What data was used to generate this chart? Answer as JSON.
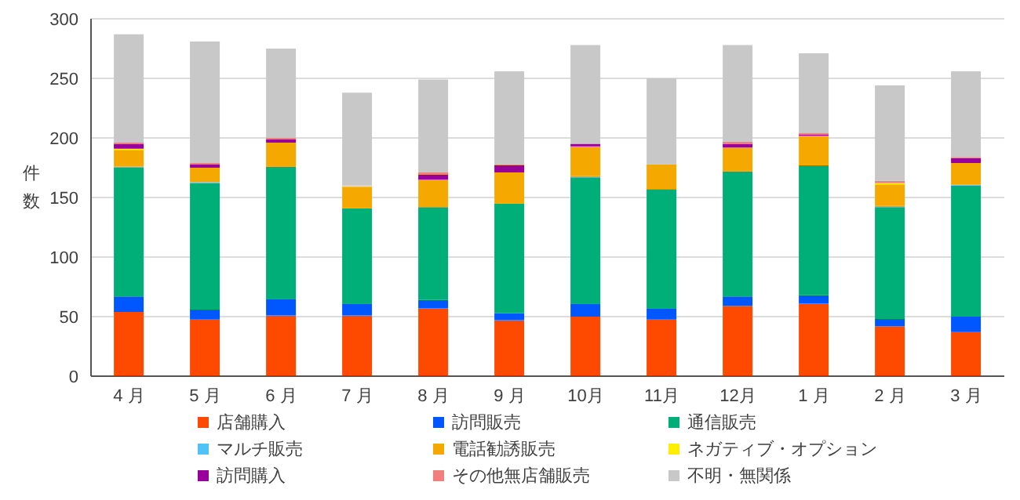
{
  "chart_data": {
    "type": "bar",
    "stacked": true,
    "ylabel": "件数",
    "categories": [
      "4 月",
      "5 月",
      "6 月",
      "7 月",
      "8 月",
      "9 月",
      "10月",
      "11月",
      "12月",
      "1 月",
      "2 月",
      "3 月"
    ],
    "series": [
      {
        "name": "店舗購入",
        "color": "#fe4a00",
        "values": [
          54,
          48,
          51,
          51,
          57,
          47,
          50,
          48,
          59,
          61,
          42,
          37
        ]
      },
      {
        "name": "訪問販売",
        "color": "#0057ff",
        "values": [
          13,
          8,
          14,
          10,
          7,
          6,
          11,
          9,
          8,
          7,
          6,
          13
        ]
      },
      {
        "name": "通信販売",
        "color": "#00ae78",
        "values": [
          108,
          106,
          111,
          80,
          78,
          92,
          106,
          100,
          105,
          109,
          94,
          110
        ]
      },
      {
        "name": "マルチ販売",
        "color": "#4fc3f7",
        "values": [
          1,
          1,
          0,
          0,
          0,
          0,
          1,
          0,
          0,
          0,
          1,
          1
        ]
      },
      {
        "name": "電話勧誘販売",
        "color": "#f5a800",
        "values": [
          14,
          12,
          20,
          18,
          23,
          26,
          25,
          21,
          20,
          25,
          18,
          18
        ]
      },
      {
        "name": "ネガティブ・オプション",
        "color": "#ffee00",
        "values": [
          1,
          0,
          0,
          1,
          0,
          0,
          0,
          0,
          0,
          0,
          1,
          0
        ]
      },
      {
        "name": "訪問購入",
        "color": "#990099",
        "values": [
          4,
          3,
          3,
          0,
          4,
          6,
          2,
          0,
          3,
          1,
          0,
          4
        ]
      },
      {
        "name": "その他無店舗販売",
        "color": "#f08080",
        "values": [
          1,
          1,
          1,
          0,
          2,
          1,
          0,
          0,
          2,
          1,
          2,
          1
        ]
      },
      {
        "name": "不明・無関係",
        "color": "#c8c8c8",
        "values": [
          91,
          102,
          75,
          78,
          78,
          78,
          83,
          72,
          81,
          67,
          80,
          72
        ]
      }
    ],
    "ylim": [
      0,
      300
    ],
    "yticks": [
      0,
      50,
      100,
      150,
      200,
      250,
      300
    ],
    "grid": "y",
    "legend": "bottom"
  }
}
